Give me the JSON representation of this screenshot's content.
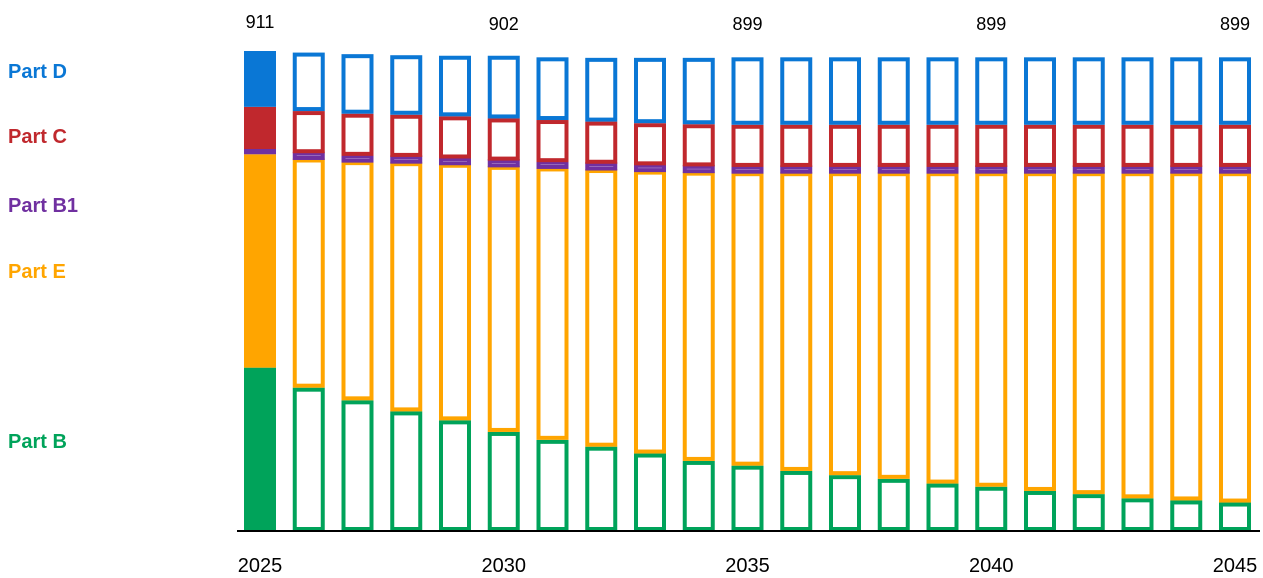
{
  "chart_data": {
    "type": "bar",
    "stacked": true,
    "categories": [
      "2025",
      "2026",
      "2027",
      "2028",
      "2029",
      "2030",
      "2031",
      "2032",
      "2033",
      "2034",
      "2035",
      "2036",
      "2037",
      "2038",
      "2039",
      "2040",
      "2041",
      "2042",
      "2043",
      "2044",
      "2045"
    ],
    "x_tick_labels": [
      "2025",
      "2030",
      "2035",
      "2040",
      "2045"
    ],
    "series": [
      {
        "name": "Part B",
        "color": "#00a35a",
        "values": [
          310,
          272,
          248,
          227,
          210,
          188,
          173,
          160,
          147,
          133,
          124,
          114,
          106,
          99,
          90,
          84,
          76,
          70,
          62,
          58,
          54
        ]
      },
      {
        "name": "Part E",
        "color": "#ffa500",
        "values": [
          405,
          435,
          454,
          473,
          487,
          505,
          517,
          527,
          537,
          549,
          557,
          567,
          575,
          582,
          591,
          597,
          605,
          611,
          619,
          623,
          627
        ]
      },
      {
        "name": "Part B1",
        "color": "#7030a0",
        "values": [
          10,
          10,
          10,
          10,
          10,
          10,
          10,
          10,
          10,
          10,
          10,
          10,
          10,
          10,
          10,
          10,
          10,
          10,
          10,
          10,
          10
        ]
      },
      {
        "name": "Part C",
        "color": "#c0282d",
        "values": [
          80,
          80,
          80,
          80,
          80,
          80,
          80,
          80,
          80,
          80,
          80,
          80,
          80,
          80,
          80,
          80,
          80,
          80,
          80,
          80,
          80
        ]
      },
      {
        "name": "Part D",
        "color": "#0a77d5",
        "values": [
          106,
          111,
          113,
          113,
          115,
          119,
          119,
          121,
          124,
          126,
          128,
          128,
          128,
          128,
          128,
          128,
          128,
          128,
          128,
          128,
          128
        ]
      }
    ],
    "bar_style": {
      "first": "filled",
      "rest": "outline"
    },
    "totals": [
      {
        "category": "2025",
        "label": "911"
      },
      {
        "category": "2030",
        "label": "902"
      },
      {
        "category": "2035",
        "label": "899"
      },
      {
        "category": "2040",
        "label": "899"
      },
      {
        "category": "2045",
        "label": "899"
      }
    ],
    "legend": [
      "Part D",
      "Part C",
      "Part B1",
      "Part E",
      "Part B"
    ],
    "legend_position": "left",
    "ylim": [
      0,
      911
    ],
    "grid": false
  }
}
